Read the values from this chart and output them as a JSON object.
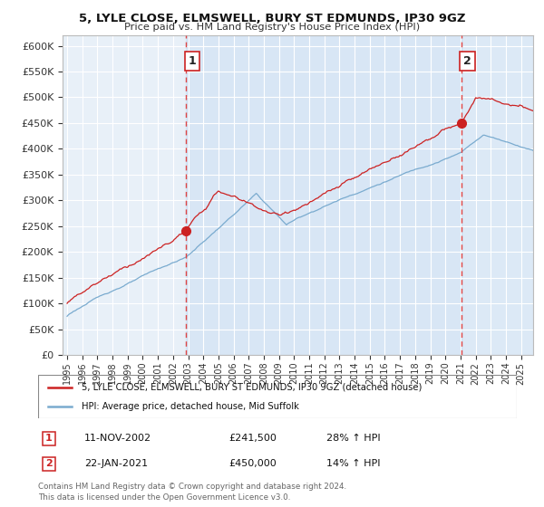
{
  "title": "5, LYLE CLOSE, ELMSWELL, BURY ST EDMUNDS, IP30 9GZ",
  "subtitle": "Price paid vs. HM Land Registry's House Price Index (HPI)",
  "legend_line1": "5, LYLE CLOSE, ELMSWELL, BURY ST EDMUNDS, IP30 9GZ (detached house)",
  "legend_line2": "HPI: Average price, detached house, Mid Suffolk",
  "sale1_date": "11-NOV-2002",
  "sale1_price": "£241,500",
  "sale1_hpi": "28% ↑ HPI",
  "sale1_x": 2002.87,
  "sale1_y": 241500,
  "sale2_date": "22-JAN-2021",
  "sale2_price": "£450,000",
  "sale2_hpi": "14% ↑ HPI",
  "sale2_x": 2021.05,
  "sale2_y": 450000,
  "red_color": "#cc2222",
  "blue_color": "#7aabcf",
  "vline_color": "#dd4444",
  "plot_bg": "#e8f0f8",
  "background_color": "#ffffff",
  "grid_color": "#ffffff",
  "footer": "Contains HM Land Registry data © Crown copyright and database right 2024.\nThis data is licensed under the Open Government Licence v3.0.",
  "ylim": [
    0,
    620000
  ],
  "xlim": [
    1994.7,
    2025.8
  ],
  "yticks": [
    0,
    50000,
    100000,
    150000,
    200000,
    250000,
    300000,
    350000,
    400000,
    450000,
    500000,
    550000,
    600000
  ]
}
